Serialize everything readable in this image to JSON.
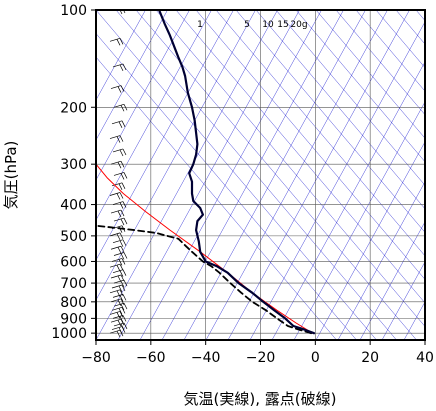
{
  "chart_data": {
    "type": "line",
    "title": "",
    "xlabel": "気温(実線), 露点(破線)",
    "ylabel": "気圧(hPa)",
    "xlim": [
      -80,
      40
    ],
    "ylim": [
      1050,
      100
    ],
    "y_scale": "log",
    "x_ticks": [
      -80,
      -60,
      -40,
      -20,
      0,
      20,
      40
    ],
    "x_tick_labels": [
      "−80",
      "−60",
      "−40",
      "−20",
      "0",
      "20",
      "40"
    ],
    "y_ticks": [
      100,
      200,
      300,
      400,
      500,
      600,
      700,
      800,
      900,
      1000
    ],
    "y_tick_labels": [
      "100",
      "200",
      "300",
      "400",
      "500",
      "600",
      "700",
      "800",
      "900",
      "1000"
    ],
    "grid": true,
    "mixing_ratio_labels": [
      "1",
      "5",
      "10",
      "15",
      "20g"
    ],
    "colors": {
      "temperature": "#000033",
      "dewpoint": "#000000",
      "parcel": "#ff0000",
      "guide_lines": "#0000cc",
      "wind_barbs": "#000000"
    },
    "series": [
      {
        "key": "temperature",
        "style": "solid",
        "points": [
          [
            -0.5,
            1000
          ],
          [
            -4,
            975
          ],
          [
            -8,
            950
          ],
          [
            -11,
            900
          ],
          [
            -15,
            850
          ],
          [
            -19,
            800
          ],
          [
            -23,
            750
          ],
          [
            -28,
            700
          ],
          [
            -32,
            650
          ],
          [
            -36,
            620
          ],
          [
            -40,
            600
          ],
          [
            -42,
            560
          ],
          [
            -42.5,
            520
          ],
          [
            -43.5,
            480
          ],
          [
            -43,
            450
          ],
          [
            -41,
            430
          ],
          [
            -42,
            410
          ],
          [
            -44.5,
            390
          ],
          [
            -45,
            370
          ],
          [
            -45,
            340
          ],
          [
            -46,
            320
          ],
          [
            -44.5,
            300
          ],
          [
            -43.5,
            280
          ],
          [
            -43,
            260
          ],
          [
            -43.5,
            240
          ],
          [
            -44,
            220
          ],
          [
            -45,
            200
          ],
          [
            -46.5,
            180
          ],
          [
            -47.5,
            160
          ],
          [
            -48.5,
            150
          ],
          [
            -50,
            140
          ],
          [
            -53,
            120
          ],
          [
            -55,
            110
          ],
          [
            -57,
            100
          ]
        ]
      },
      {
        "key": "dewpoint",
        "style": "dashed",
        "points": [
          [
            -1.5,
            1000
          ],
          [
            -6,
            975
          ],
          [
            -10,
            950
          ],
          [
            -14,
            900
          ],
          [
            -18,
            850
          ],
          [
            -23,
            800
          ],
          [
            -27,
            750
          ],
          [
            -31,
            700
          ],
          [
            -35,
            650
          ],
          [
            -38,
            620
          ],
          [
            -41,
            600
          ],
          [
            -45,
            560
          ],
          [
            -47,
            540
          ],
          [
            -50,
            510
          ],
          [
            -54,
            500
          ],
          [
            -58,
            490
          ],
          [
            -66,
            480
          ],
          [
            -75,
            470
          ],
          [
            -80,
            465
          ]
        ]
      },
      {
        "key": "parcel",
        "style": "solid",
        "points": [
          [
            -1,
            1000
          ],
          [
            -7,
            930
          ],
          [
            -14,
            850
          ],
          [
            -23,
            750
          ],
          [
            -32,
            650
          ],
          [
            -42,
            560
          ],
          [
            -53,
            480
          ],
          [
            -62,
            420
          ],
          [
            -70,
            370
          ],
          [
            -76,
            330
          ],
          [
            -80,
            300
          ]
        ]
      }
    ],
    "wind_profile_levels": [
      1000,
      975,
      950,
      925,
      900,
      875,
      850,
      825,
      800,
      775,
      750,
      725,
      700,
      675,
      650,
      625,
      600,
      575,
      550,
      525,
      500,
      475,
      450,
      425,
      400,
      375,
      350,
      325,
      300,
      275,
      250,
      225,
      200,
      175,
      150,
      125,
      100
    ]
  }
}
